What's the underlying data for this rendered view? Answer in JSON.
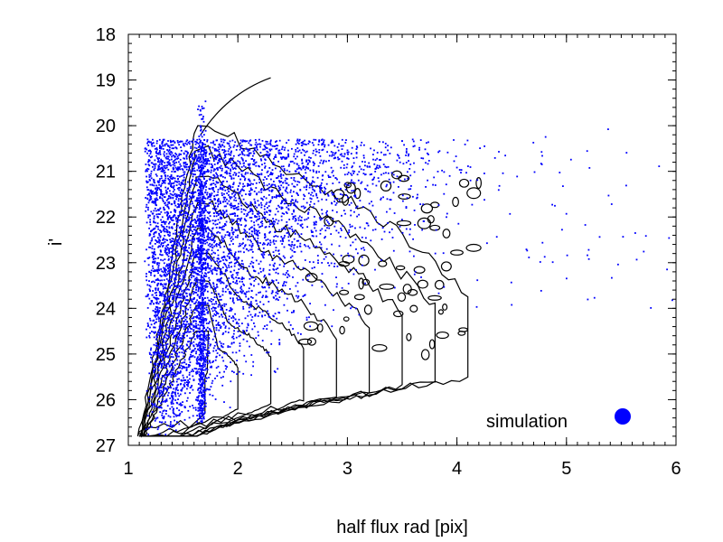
{
  "colors": {
    "series": "#0000ff",
    "contour": "#000000",
    "axis": "#000000",
    "background": "#ffffff"
  },
  "chart_data": {
    "type": "scatter",
    "title": "",
    "xlabel": "half flux rad [pix]",
    "ylabel": "i'",
    "xlim": [
      1,
      6
    ],
    "ylim": [
      27,
      18
    ],
    "y_inverted": true,
    "grid": false,
    "legend_position": "bottom-right",
    "x_ticks": [
      "1",
      "2",
      "3",
      "4",
      "5",
      "6"
    ],
    "y_ticks": [
      "18",
      "19",
      "20",
      "21",
      "22",
      "23",
      "24",
      "25",
      "26",
      "27"
    ],
    "series": [
      {
        "name": "simulation",
        "color": "#0000ff",
        "marker": "dot",
        "components": [
          {
            "kind": "stellar_locus",
            "x_center": 1.67,
            "x_spread": 0.02,
            "y_range": [
              19.4,
              26.5
            ],
            "n": 700
          },
          {
            "kind": "galaxy_cloud",
            "anchor": [
              1.15,
              26.8
            ],
            "x_range": [
              1.1,
              4.2
            ],
            "y_range": [
              20.3,
              26.9
            ],
            "n": 5200
          },
          {
            "kind": "sparse_outliers",
            "x_range": [
              3.5,
              6.0
            ],
            "y_range": [
              20.0,
              24.0
            ],
            "n": 70
          }
        ]
      }
    ],
    "contours": {
      "color": "#000000",
      "description": "density contours of observed data",
      "origin": [
        1.15,
        26.7
      ],
      "stellar_arm_top": [
        1.68,
        20.0
      ],
      "bright_tail_end": [
        2.3,
        18.95
      ],
      "outer_extent_x": 4.1,
      "outer_extent_top": 20.8,
      "levels": 9
    }
  }
}
